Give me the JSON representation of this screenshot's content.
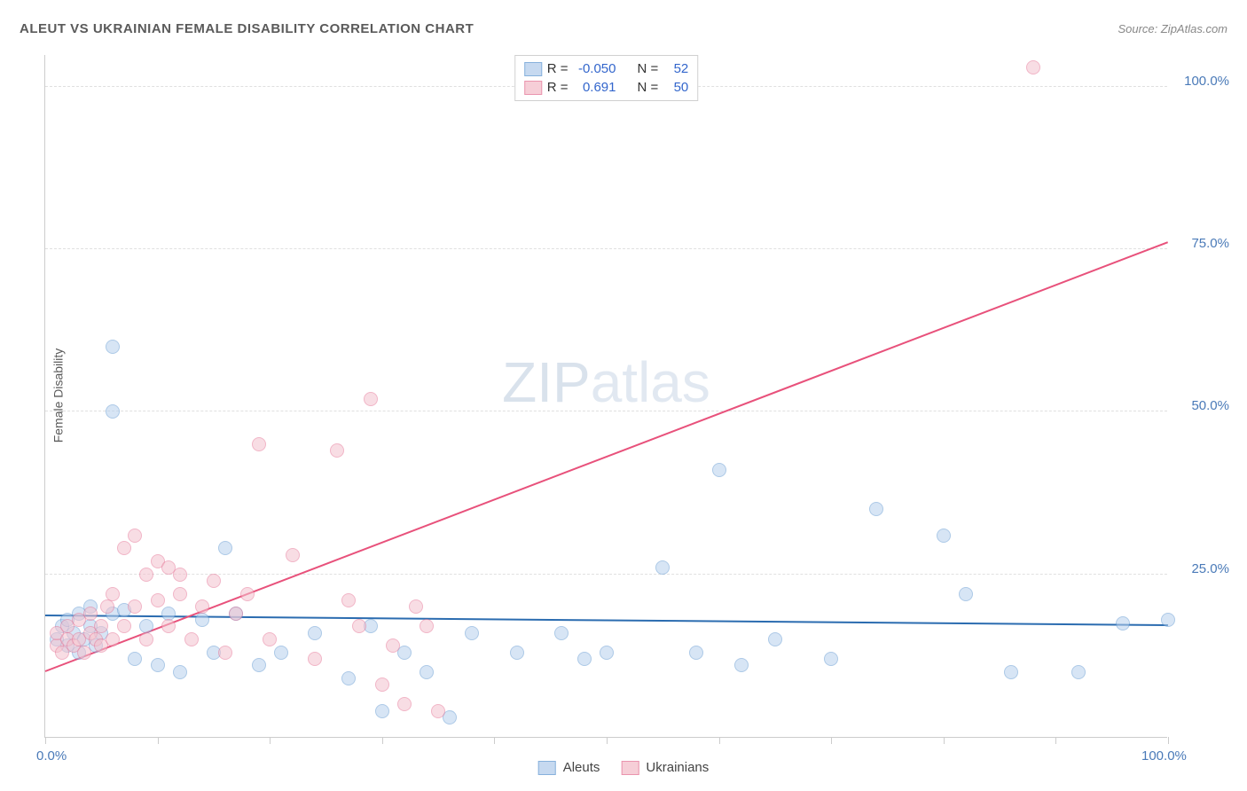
{
  "title": "ALEUT VS UKRAINIAN FEMALE DISABILITY CORRELATION CHART",
  "source_label": "Source: ZipAtlas.com",
  "ylabel": "Female Disability",
  "watermark": {
    "zip": "ZIP",
    "atlas": "atlas"
  },
  "chart": {
    "type": "scatter",
    "xlim": [
      0,
      100
    ],
    "ylim": [
      0,
      105
    ],
    "grid_y": [
      25,
      50,
      75,
      100
    ],
    "grid_color": "#e0e0e0",
    "ytick_labels": [
      {
        "v": 25,
        "label": "25.0%"
      },
      {
        "v": 50,
        "label": "50.0%"
      },
      {
        "v": 75,
        "label": "75.0%"
      },
      {
        "v": 100,
        "label": "100.0%"
      }
    ],
    "xtick_positions": [
      0,
      10,
      20,
      30,
      40,
      50,
      60,
      70,
      80,
      90,
      100
    ],
    "xtick_labels": [
      {
        "v": 0,
        "label": "0.0%"
      },
      {
        "v": 100,
        "label": "100.0%"
      }
    ],
    "marker_radius": 8,
    "marker_stroke_width": 1.5,
    "series": [
      {
        "name": "Aleuts",
        "fill": "#b8d0ed",
        "stroke": "#6a9ed4",
        "fill_opacity": 0.55,
        "r": -0.05,
        "n": 52,
        "trend": {
          "x1": 0,
          "y1": 18.5,
          "x2": 100,
          "y2": 17.0,
          "color": "#2b6cb0",
          "width": 2
        },
        "points": [
          [
            1,
            15
          ],
          [
            1.5,
            17
          ],
          [
            2,
            14
          ],
          [
            2,
            18
          ],
          [
            2.5,
            16
          ],
          [
            3,
            13
          ],
          [
            3,
            19
          ],
          [
            3.5,
            15
          ],
          [
            4,
            17
          ],
          [
            4,
            20
          ],
          [
            4.5,
            14
          ],
          [
            5,
            16
          ],
          [
            6,
            19
          ],
          [
            6,
            60
          ],
          [
            6,
            50
          ],
          [
            7,
            19.5
          ],
          [
            8,
            12
          ],
          [
            9,
            17
          ],
          [
            10,
            11
          ],
          [
            11,
            19
          ],
          [
            12,
            10
          ],
          [
            14,
            18
          ],
          [
            15,
            13
          ],
          [
            16,
            29
          ],
          [
            17,
            19
          ],
          [
            19,
            11
          ],
          [
            21,
            13
          ],
          [
            24,
            16
          ],
          [
            27,
            9
          ],
          [
            29,
            17
          ],
          [
            30,
            4
          ],
          [
            32,
            13
          ],
          [
            34,
            10
          ],
          [
            36,
            3
          ],
          [
            38,
            16
          ],
          [
            42,
            13
          ],
          [
            46,
            16
          ],
          [
            48,
            12
          ],
          [
            50,
            13
          ],
          [
            55,
            26
          ],
          [
            58,
            13
          ],
          [
            60,
            41
          ],
          [
            62,
            11
          ],
          [
            65,
            15
          ],
          [
            70,
            12
          ],
          [
            74,
            35
          ],
          [
            80,
            31
          ],
          [
            82,
            22
          ],
          [
            86,
            10
          ],
          [
            92,
            10
          ],
          [
            96,
            17.5
          ],
          [
            100,
            18
          ]
        ]
      },
      {
        "name": "Ukrainians",
        "fill": "#f4c2ce",
        "stroke": "#e67a9a",
        "fill_opacity": 0.55,
        "r": 0.691,
        "n": 50,
        "trend": {
          "x1": 0,
          "y1": 10,
          "x2": 100,
          "y2": 76,
          "color": "#e8517b",
          "width": 2
        },
        "points": [
          [
            1,
            14
          ],
          [
            1,
            16
          ],
          [
            1.5,
            13
          ],
          [
            2,
            15
          ],
          [
            2,
            17
          ],
          [
            2.5,
            14
          ],
          [
            3,
            15
          ],
          [
            3,
            18
          ],
          [
            3.5,
            13
          ],
          [
            4,
            16
          ],
          [
            4,
            19
          ],
          [
            4.5,
            15
          ],
          [
            5,
            14
          ],
          [
            5,
            17
          ],
          [
            5.5,
            20
          ],
          [
            6,
            15
          ],
          [
            6,
            22
          ],
          [
            7,
            17
          ],
          [
            7,
            29
          ],
          [
            8,
            20
          ],
          [
            8,
            31
          ],
          [
            9,
            25
          ],
          [
            9,
            15
          ],
          [
            10,
            21
          ],
          [
            10,
            27
          ],
          [
            11,
            26
          ],
          [
            11,
            17
          ],
          [
            12,
            22
          ],
          [
            12,
            25
          ],
          [
            13,
            15
          ],
          [
            14,
            20
          ],
          [
            15,
            24
          ],
          [
            16,
            13
          ],
          [
            17,
            19
          ],
          [
            18,
            22
          ],
          [
            19,
            45
          ],
          [
            20,
            15
          ],
          [
            22,
            28
          ],
          [
            24,
            12
          ],
          [
            26,
            44
          ],
          [
            27,
            21
          ],
          [
            28,
            17
          ],
          [
            29,
            52
          ],
          [
            30,
            8
          ],
          [
            31,
            14
          ],
          [
            32,
            5
          ],
          [
            33,
            20
          ],
          [
            34,
            17
          ],
          [
            88,
            103
          ],
          [
            35,
            4
          ]
        ]
      }
    ]
  },
  "stats_legend": {
    "r_label": "R =",
    "n_label": "N ="
  },
  "bottom_legend": {
    "items": [
      "Aleuts",
      "Ukrainians"
    ]
  },
  "colors": {
    "title": "#5a5a5a",
    "axis_text": "#4a7ab8",
    "link_blue": "#3366cc"
  }
}
